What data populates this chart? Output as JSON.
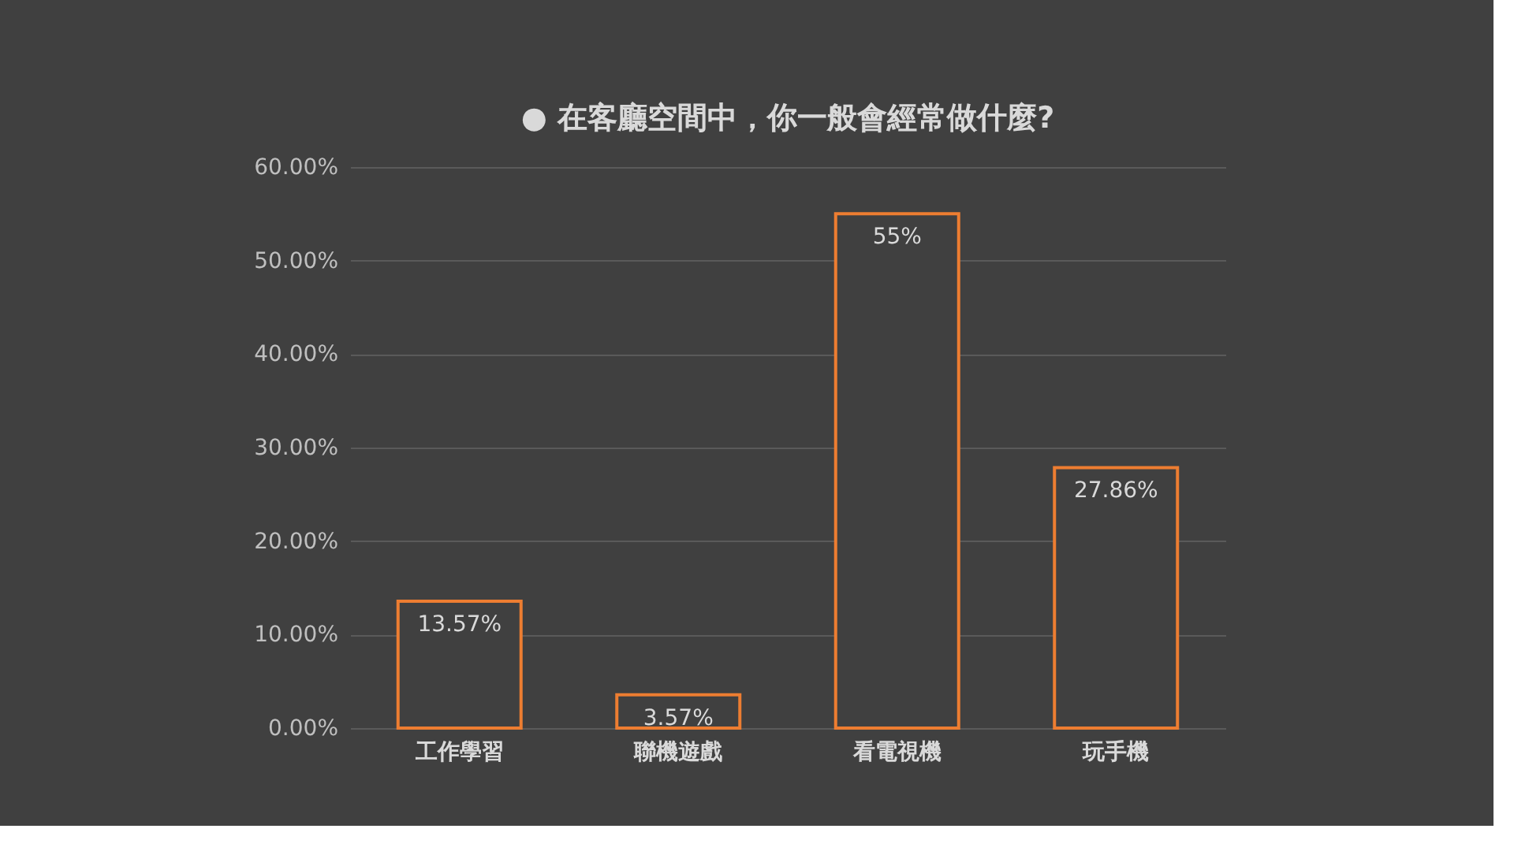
{
  "chart_data": {
    "type": "bar",
    "title": "● 在客廳空間中，你一般會經常做什麼?",
    "categories": [
      "工作學習",
      "聯機遊戲",
      "看電視機",
      "玩手機"
    ],
    "values": [
      13.57,
      3.57,
      55,
      27.86
    ],
    "value_labels": [
      "13.57%",
      "3.57%",
      "55%",
      "27.86%"
    ],
    "color": "#ed7d31",
    "ylim": [
      0,
      60
    ],
    "yticks": [
      {
        "value": 0,
        "label": "0.00%"
      },
      {
        "value": 10,
        "label": "10.00%"
      },
      {
        "value": 20,
        "label": "20.00%"
      },
      {
        "value": 30,
        "label": "30.00%"
      },
      {
        "value": 40,
        "label": "40.00%"
      },
      {
        "value": 50,
        "label": "50.00%"
      },
      {
        "value": 60,
        "label": "60.00%"
      }
    ],
    "grid": "y"
  }
}
